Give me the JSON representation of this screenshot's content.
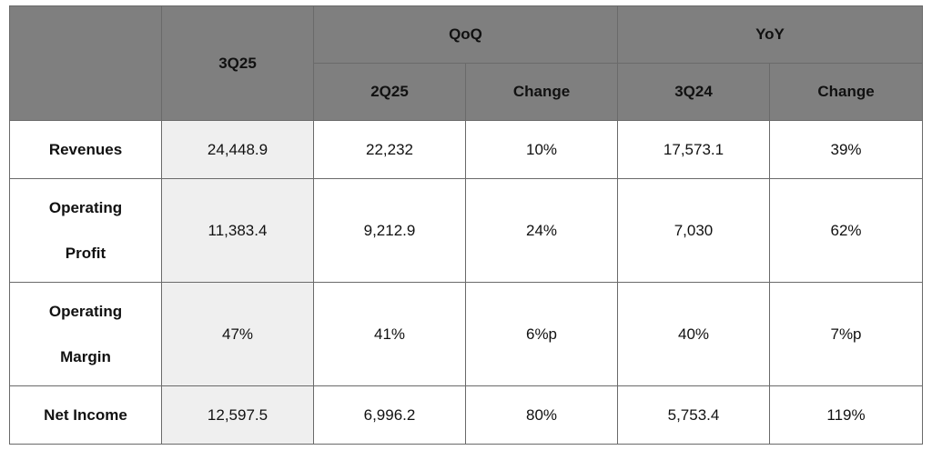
{
  "table": {
    "header": {
      "top": [
        "3Q25",
        "QoQ",
        "YoY"
      ],
      "sub": [
        "2Q25",
        "Change",
        "3Q24",
        "Change"
      ]
    },
    "rows": [
      [
        "Revenues",
        "24,448.9",
        "22,232",
        "10%",
        "17,573.1",
        "39%"
      ],
      [
        "Operating Profit",
        "11,383.4",
        "9,212.9",
        "24%",
        "7,030",
        "62%"
      ],
      [
        "Operating Margin",
        "47%",
        "41%",
        "6%p",
        "40%",
        "7%p"
      ],
      [
        "Net Income",
        "12,597.5",
        "6,996.2",
        "80%",
        "5,753.4",
        "119%"
      ]
    ]
  }
}
